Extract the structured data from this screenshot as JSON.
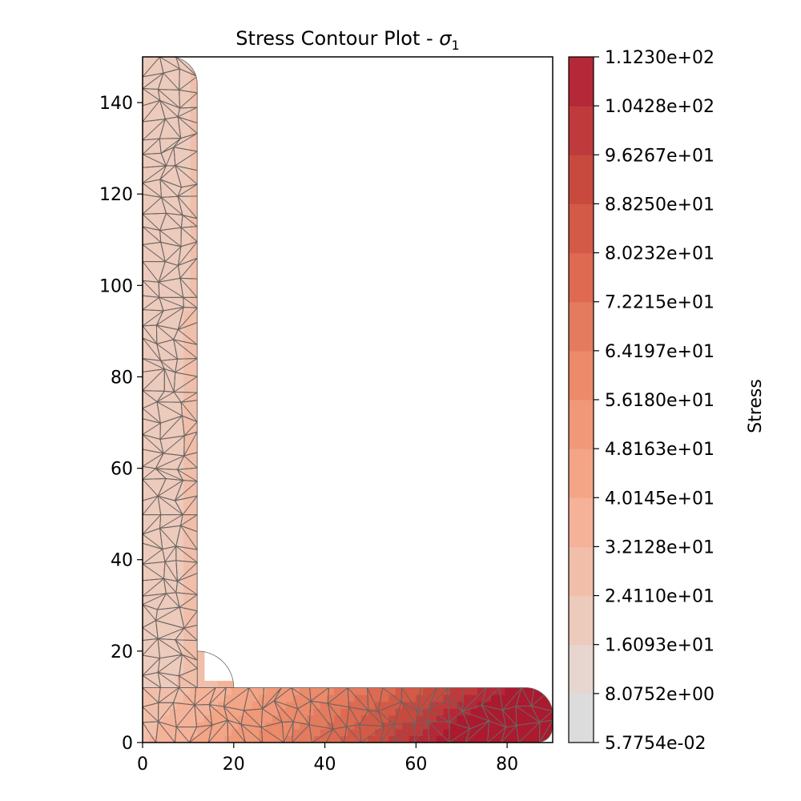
{
  "chart_data": {
    "type": "contour",
    "title": "Stress Contour Plot - ",
    "title_symbol": "σ",
    "title_subscript": "1",
    "xlim": [
      0,
      90
    ],
    "ylim": [
      0,
      150
    ],
    "xticks": [
      "0",
      "20",
      "40",
      "60",
      "80"
    ],
    "yticks": [
      "0",
      "20",
      "40",
      "60",
      "80",
      "100",
      "120",
      "140"
    ],
    "xtick_values": [
      0,
      20,
      40,
      60,
      80
    ],
    "ytick_values": [
      0,
      20,
      40,
      60,
      80,
      100,
      120,
      140
    ],
    "colorbar": {
      "label": "Stress",
      "levels": [
        "5.7754e-02",
        "8.0752e+00",
        "1.6093e+01",
        "2.4110e+01",
        "3.2128e+01",
        "4.0145e+01",
        "4.8163e+01",
        "5.6180e+01",
        "6.4197e+01",
        "7.2215e+01",
        "8.0232e+01",
        "8.8250e+01",
        "9.6267e+01",
        "1.0428e+02",
        "1.1230e+02"
      ],
      "colors": [
        "#dddcdc",
        "#e6d6cf",
        "#eccabc",
        "#f1bea9",
        "#f5b298",
        "#f4a586",
        "#f19879",
        "#ec8a6a",
        "#e47b5e",
        "#dd6a51",
        "#d35a46",
        "#c84a3f",
        "#bf3a3a",
        "#b52837",
        "#ab1a2f"
      ]
    },
    "geometry": {
      "shape": "L-section",
      "vertical_leg": {
        "x": [
          0,
          12
        ],
        "y": [
          0,
          150
        ]
      },
      "horizontal_leg": {
        "x": [
          0,
          90
        ],
        "y": [
          0,
          12
        ]
      },
      "fillet_radius": 8
    },
    "mesh": "triangular, gray edges",
    "stress_trend": "low along vertical leg (left edge ~ 10-20), rising toward bottom-right corner (max ~ 112)"
  }
}
